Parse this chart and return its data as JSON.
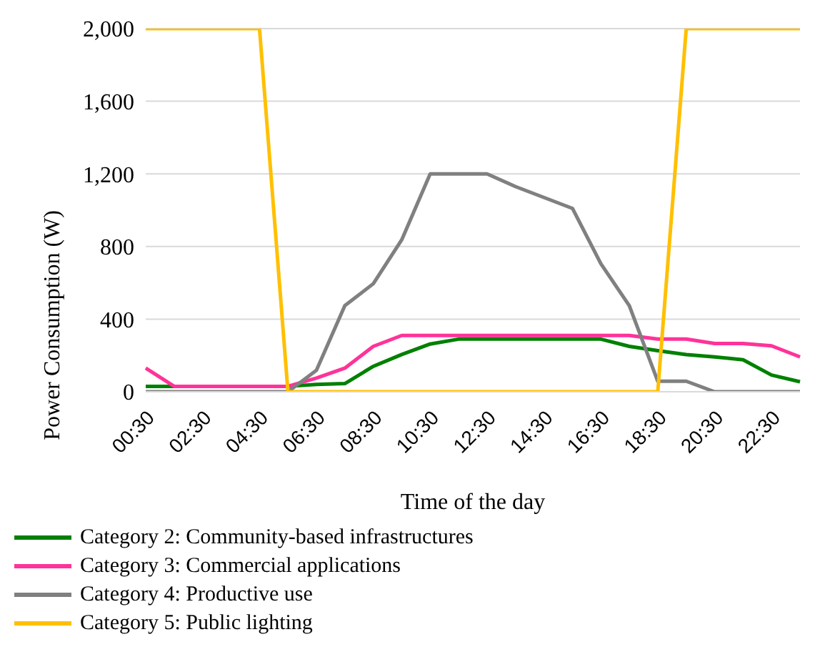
{
  "chart_data": {
    "type": "line",
    "xlabel": "Time of the day",
    "ylabel": "Power Consumption (W)",
    "categories": [
      "00:30",
      null,
      "02:30",
      null,
      "04:30",
      null,
      "06:30",
      null,
      "08:30",
      null,
      "10:30",
      null,
      "12:30",
      null,
      "14:30",
      null,
      "16:30",
      null,
      "18:30",
      null,
      "20:30",
      null,
      "22:30",
      null
    ],
    "series": [
      {
        "name": "Category 2: Community-based infrastructures",
        "color": "#008000",
        "values": [
          30,
          30,
          null,
          null,
          null,
          30,
          40,
          45,
          140,
          205,
          263,
          290,
          290,
          290,
          290,
          290,
          290,
          250,
          226,
          205,
          192,
          176,
          92,
          55
        ]
      },
      {
        "name": "Category 3: Commercial applications",
        "color": "#ff3399",
        "values": [
          130,
          30,
          30,
          30,
          30,
          30,
          75,
          130,
          250,
          310,
          310,
          310,
          310,
          310,
          310,
          310,
          310,
          310,
          290,
          290,
          266,
          266,
          253,
          192
        ]
      },
      {
        "name": "Category 4: Productive use",
        "color": "#808080",
        "values": [
          0,
          0,
          0,
          0,
          0,
          0,
          118,
          474,
          595,
          837,
          1200,
          1200,
          1200,
          1130,
          1070,
          1010,
          705,
          474,
          58,
          58,
          0,
          0,
          0,
          0
        ]
      },
      {
        "name": "Category 5: Public lighting",
        "color": "#ffc000",
        "values": [
          2000,
          2000,
          2000,
          2000,
          2000,
          0,
          0,
          0,
          0,
          0,
          0,
          0,
          0,
          0,
          0,
          0,
          0,
          0,
          0,
          2000,
          2000,
          2000,
          2000,
          2000
        ]
      }
    ],
    "ylim": [
      0,
      2000
    ],
    "yticks": [
      0,
      400,
      800,
      {
        "value": 1200,
        "label": "1,200"
      },
      {
        "value": 1600,
        "label": "1,600"
      },
      {
        "value": 2000,
        "label": "2,000"
      }
    ],
    "grid": "y",
    "legend": "bottom",
    "marker": "none",
    "line_style": "solid"
  }
}
